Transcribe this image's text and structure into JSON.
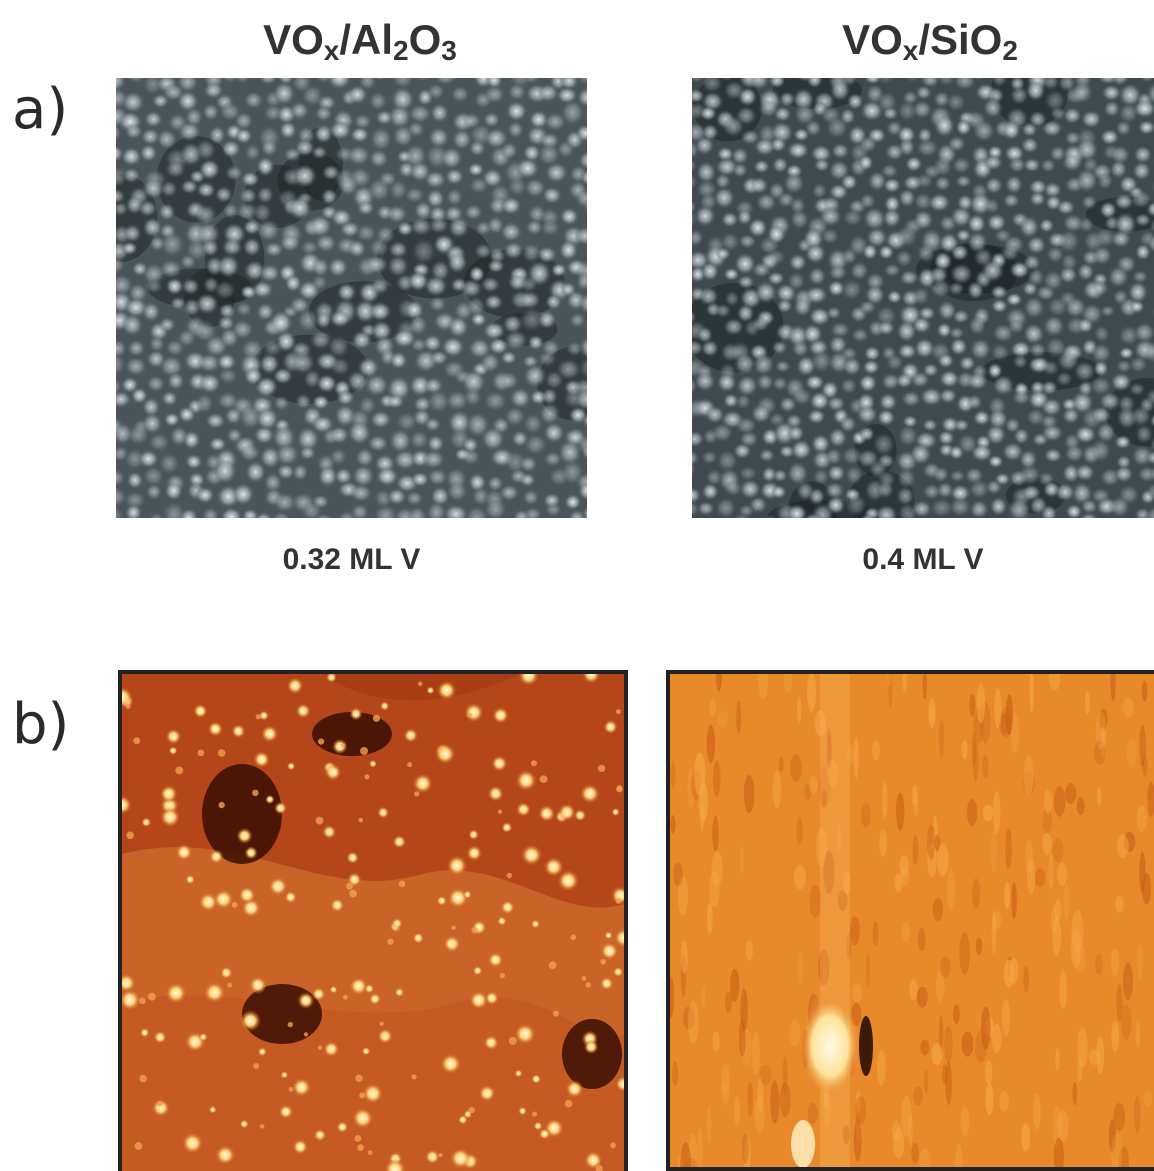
{
  "columns": [
    {
      "title_main": "VO",
      "title_sub1": "x",
      "title_mid": "/Al",
      "title_sub2": "2",
      "title_o": "O",
      "title_sub3": "3"
    },
    {
      "title_main": "VO",
      "title_sub1": "x",
      "title_mid": "/SiO",
      "title_sub2": "2"
    }
  ],
  "rows": [
    {
      "label": "a)"
    },
    {
      "label": "b)"
    }
  ],
  "coverage": [
    "0.32 ML V",
    "0.4 ML V"
  ],
  "colors": {
    "stm_gray_dark": "#2c3234",
    "stm_gray_light": "#e6eef0",
    "afm_dark": "#8a2a0c",
    "afm_light": "#fff3c0",
    "afm2_base": "#e88a2a"
  }
}
